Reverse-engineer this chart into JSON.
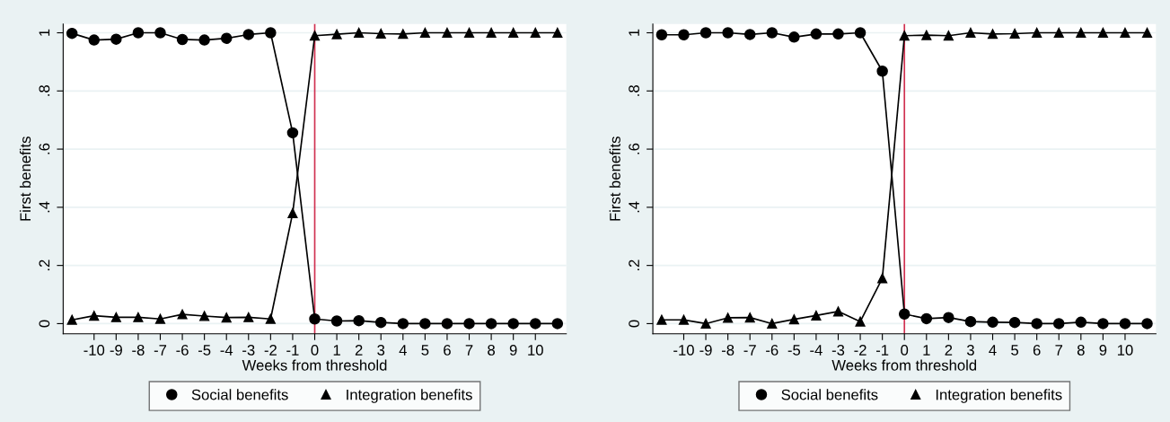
{
  "chart_data": [
    {
      "type": "line",
      "xlabel": "Weeks from threshold",
      "ylabel": "First benefits",
      "x": [
        -11,
        -10,
        -9,
        -8,
        -7,
        -6,
        -5,
        -4,
        -3,
        -2,
        -1,
        0,
        1,
        2,
        3,
        4,
        5,
        6,
        7,
        8,
        9,
        10,
        11
      ],
      "series": [
        {
          "name": "Social benefits",
          "color": "#000000",
          "marker": "circle",
          "values": [
            0.998,
            0.975,
            0.978,
            1.0,
            1.0,
            0.977,
            0.975,
            0.981,
            0.994,
            1.0,
            0.656,
            0.016,
            0.009,
            0.01,
            0.004,
            0,
            0,
            0,
            0,
            0,
            0,
            0,
            0
          ]
        },
        {
          "name": "Integration benefits",
          "color": "#000000",
          "marker": "triangle",
          "values": [
            0.013,
            0.027,
            0.022,
            0.022,
            0.016,
            0.032,
            0.026,
            0.021,
            0.022,
            0.016,
            0.38,
            0.99,
            0.995,
            1.0,
            0.997,
            0.996,
            1.0,
            1.0,
            1.0,
            1.0,
            1.0,
            1.0,
            1.0
          ]
        }
      ],
      "xlim": [
        -11.4,
        11.4
      ],
      "xticks": [
        -10,
        -9,
        -8,
        -7,
        -6,
        -5,
        -4,
        -3,
        -2,
        -1,
        0,
        1,
        2,
        3,
        4,
        5,
        6,
        7,
        8,
        9,
        10
      ],
      "ylim": [
        -0.035,
        1.03
      ],
      "yticks": [
        0,
        {
          "value": 0.2,
          "label": ".2"
        },
        {
          "value": 0.4,
          "label": ".4"
        },
        {
          "value": 0.6,
          "label": ".6"
        },
        {
          "value": 0.8,
          "label": ".8"
        },
        1
      ],
      "ref_lines": [
        {
          "axis": "x",
          "value": 0,
          "color": "#d03050"
        }
      ],
      "grid": "y",
      "legend": "bottom",
      "line_style": "solid"
    },
    {
      "type": "line",
      "xlabel": "Weeks from threshold",
      "ylabel": "First benefits",
      "x": [
        -11,
        -10,
        -9,
        -8,
        -7,
        -6,
        -5,
        -4,
        -3,
        -2,
        -1,
        0,
        1,
        2,
        3,
        4,
        5,
        6,
        7,
        8,
        9,
        10,
        11
      ],
      "series": [
        {
          "name": "Social benefits",
          "color": "#000000",
          "marker": "circle",
          "values": [
            0.993,
            0.993,
            1.0,
            1.0,
            0.994,
            1.0,
            0.985,
            0.996,
            0.996,
            1.0,
            0.868,
            0.033,
            0.017,
            0.021,
            0.007,
            0.005,
            0.004,
            0,
            0,
            0.005,
            0,
            0,
            0
          ]
        },
        {
          "name": "Integration benefits",
          "color": "#000000",
          "marker": "triangle",
          "values": [
            0.013,
            0.013,
            0,
            0.02,
            0.021,
            0,
            0.015,
            0.028,
            0.042,
            0.007,
            0.156,
            0.99,
            0.992,
            0.99,
            1.0,
            0.996,
            0.997,
            1.0,
            1.0,
            1.0,
            1.0,
            1.0,
            1.0
          ]
        }
      ],
      "xlim": [
        -11.4,
        11.4
      ],
      "xticks": [
        -10,
        -9,
        -8,
        -7,
        -6,
        -5,
        -4,
        -3,
        -2,
        -1,
        0,
        1,
        2,
        3,
        4,
        5,
        6,
        7,
        8,
        9,
        10
      ],
      "ylim": [
        -0.035,
        1.03
      ],
      "yticks": [
        0,
        {
          "value": 0.2,
          "label": ".2"
        },
        {
          "value": 0.4,
          "label": ".4"
        },
        {
          "value": 0.6,
          "label": ".6"
        },
        {
          "value": 0.8,
          "label": ".8"
        },
        1
      ],
      "ref_lines": [
        {
          "axis": "x",
          "value": 0,
          "color": "#d03050"
        }
      ],
      "grid": "y",
      "legend": "bottom",
      "line_style": "solid"
    }
  ]
}
